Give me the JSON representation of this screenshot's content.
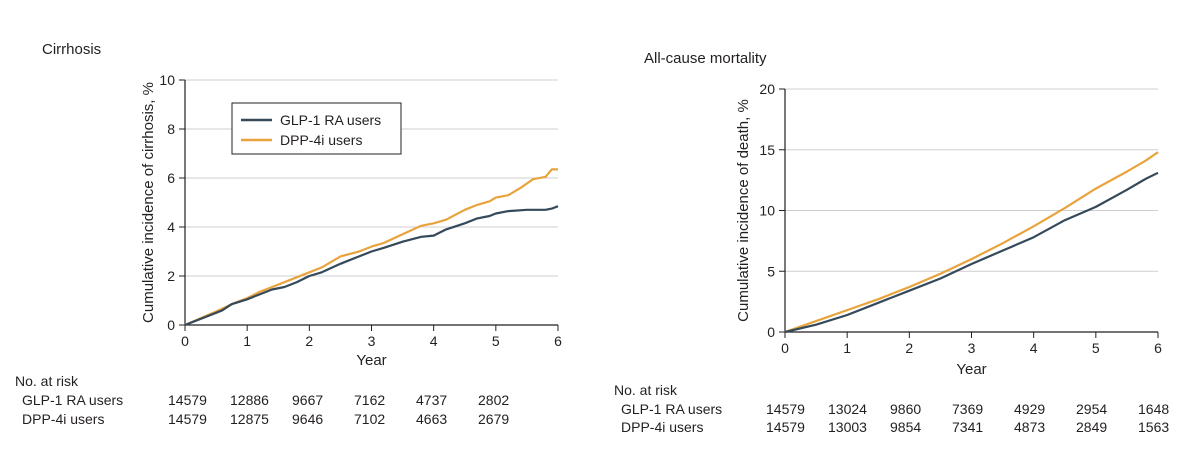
{
  "chart_data": [
    {
      "type": "line",
      "title": "Cirrhosis",
      "xlabel": "Year",
      "ylabel": "Cumulative incidence of cirrhosis, %",
      "xlim": [
        0,
        6
      ],
      "ylim": [
        0,
        10
      ],
      "x_ticks": [
        "0",
        "1",
        "2",
        "3",
        "4",
        "5",
        "6"
      ],
      "y_ticks": [
        "0",
        "2",
        "4",
        "6",
        "8",
        "10"
      ],
      "grid": true,
      "legend": "top-left",
      "series": [
        {
          "name": "GLP-1 RA users",
          "color": "#34495a",
          "x": [
            0,
            0.5,
            0.6,
            0.75,
            1,
            1.2,
            1.4,
            1.6,
            1.8,
            2,
            2.2,
            2.5,
            2.6,
            2.8,
            3,
            3.2,
            3.5,
            3.8,
            4,
            4.2,
            4.5,
            4.7,
            4.9,
            5,
            5.2,
            5.5,
            5.8,
            5.9,
            6
          ],
          "y": [
            0,
            0.5,
            0.6,
            0.85,
            1.05,
            1.25,
            1.45,
            1.55,
            1.75,
            2.0,
            2.15,
            2.5,
            2.6,
            2.8,
            3.0,
            3.15,
            3.4,
            3.6,
            3.65,
            3.9,
            4.15,
            4.35,
            4.45,
            4.55,
            4.65,
            4.7,
            4.7,
            4.75,
            4.85
          ]
        },
        {
          "name": "DPP-4i users",
          "color": "#e8a33d",
          "x": [
            0,
            0.5,
            0.8,
            1,
            1.2,
            1.5,
            1.7,
            2,
            2.2,
            2.5,
            2.8,
            3,
            3.2,
            3.5,
            3.8,
            4,
            4.2,
            4.5,
            4.7,
            4.9,
            5,
            5.2,
            5.4,
            5.6,
            5.8,
            5.9,
            6
          ],
          "y": [
            0,
            0.55,
            0.9,
            1.1,
            1.35,
            1.65,
            1.85,
            2.15,
            2.35,
            2.8,
            3.0,
            3.2,
            3.35,
            3.7,
            4.05,
            4.15,
            4.3,
            4.7,
            4.9,
            5.05,
            5.2,
            5.3,
            5.6,
            5.95,
            6.05,
            6.35,
            6.35
          ]
        }
      ],
      "risk_table": {
        "title": "No. at risk",
        "rows": [
          {
            "label": "GLP-1 RA users",
            "values": [
              "14579",
              "12886",
              "9667",
              "7162",
              "4737",
              "2802"
            ]
          },
          {
            "label": "DPP-4i users",
            "values": [
              "14579",
              "12875",
              "9646",
              "7102",
              "4663",
              "2679"
            ]
          }
        ]
      }
    },
    {
      "type": "line",
      "title": "All-cause mortality",
      "xlabel": "Year",
      "ylabel": "Cumulative incidence of death, %",
      "xlim": [
        0,
        6
      ],
      "ylim": [
        0,
        20
      ],
      "x_ticks": [
        "0",
        "1",
        "2",
        "3",
        "4",
        "5",
        "6"
      ],
      "y_ticks": [
        "0",
        "5",
        "10",
        "15",
        "20"
      ],
      "grid": true,
      "series": [
        {
          "name": "GLP-1 RA users",
          "color": "#34495a",
          "x": [
            0,
            0.5,
            1,
            1.5,
            2,
            2.5,
            3,
            3.5,
            4,
            4.5,
            5,
            5.5,
            5.8,
            6
          ],
          "y": [
            0,
            0.6,
            1.4,
            2.4,
            3.4,
            4.4,
            5.6,
            6.7,
            7.8,
            9.2,
            10.3,
            11.7,
            12.6,
            13.1
          ]
        },
        {
          "name": "DPP-4i users",
          "color": "#e8a33d",
          "x": [
            0,
            0.5,
            1,
            1.5,
            2,
            2.5,
            3,
            3.5,
            4,
            4.5,
            5,
            5.5,
            5.8,
            6
          ],
          "y": [
            0,
            0.9,
            1.8,
            2.7,
            3.7,
            4.8,
            6.0,
            7.3,
            8.7,
            10.2,
            11.8,
            13.2,
            14.1,
            14.8
          ]
        }
      ],
      "risk_table": {
        "title": "No. at risk",
        "rows": [
          {
            "label": "GLP-1 RA users",
            "values": [
              "14579",
              "13024",
              "9860",
              "7369",
              "4929",
              "2954",
              "1648"
            ]
          },
          {
            "label": "DPP-4i users",
            "values": [
              "14579",
              "13003",
              "9854",
              "7341",
              "4873",
              "2849",
              "1563"
            ]
          }
        ]
      }
    }
  ]
}
